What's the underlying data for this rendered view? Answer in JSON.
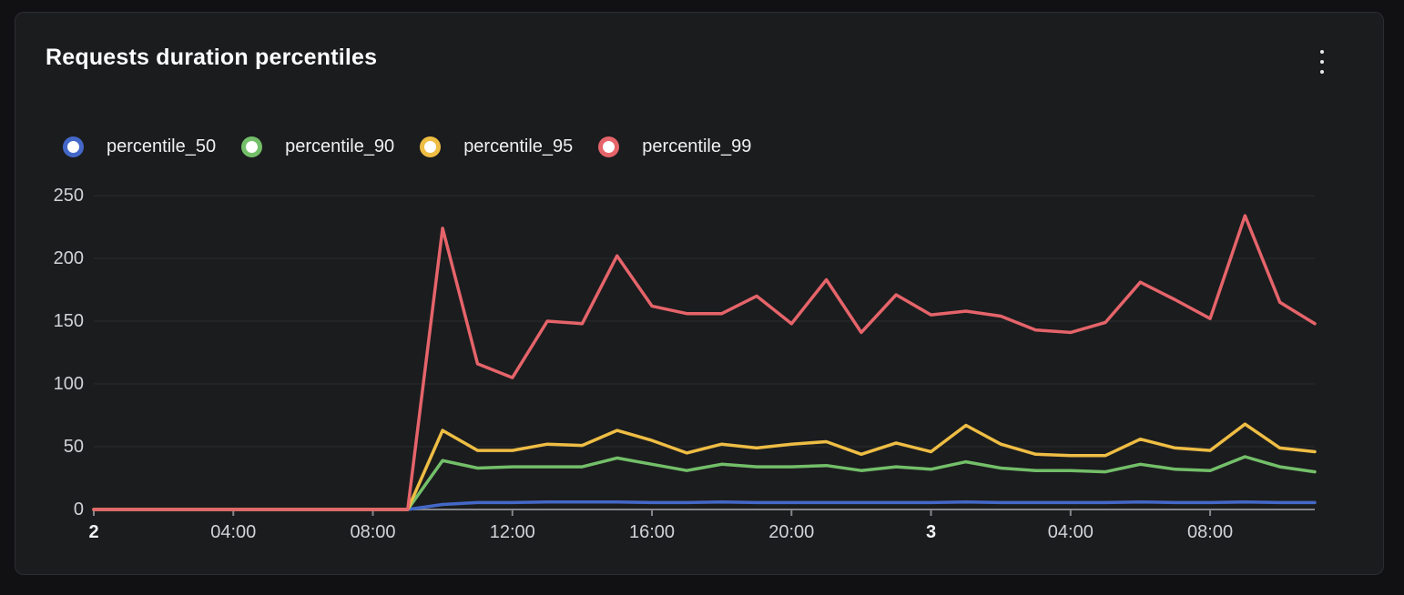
{
  "panel": {
    "title": "Requests duration percentiles",
    "menu_icon": "kebab-menu"
  },
  "chart_data": {
    "type": "line",
    "title": "Requests duration percentiles",
    "ylim": [
      0,
      250
    ],
    "y_ticks": [
      0,
      50,
      100,
      150,
      200,
      250
    ],
    "grid": "horizontal",
    "legend_position": "top",
    "x_hours": [
      0,
      1,
      2,
      3,
      4,
      5,
      6,
      7,
      8,
      9,
      10,
      11,
      12,
      13,
      14,
      15,
      16,
      17,
      18,
      19,
      20,
      21,
      22,
      23,
      24,
      25,
      26,
      27,
      28,
      29,
      30,
      31,
      32,
      33,
      34,
      35
    ],
    "x_ticks": [
      {
        "label": "2",
        "hour": 0,
        "bold": true
      },
      {
        "label": "04:00",
        "hour": 4,
        "bold": false
      },
      {
        "label": "08:00",
        "hour": 8,
        "bold": false
      },
      {
        "label": "12:00",
        "hour": 12,
        "bold": false
      },
      {
        "label": "16:00",
        "hour": 16,
        "bold": false
      },
      {
        "label": "20:00",
        "hour": 20,
        "bold": false
      },
      {
        "label": "3",
        "hour": 24,
        "bold": true
      },
      {
        "label": "04:00",
        "hour": 28,
        "bold": false
      },
      {
        "label": "08:00",
        "hour": 32,
        "bold": false
      }
    ],
    "series": [
      {
        "name": "percentile_50",
        "color": "#4468c8",
        "values": [
          0,
          0,
          0,
          0,
          0,
          0,
          0,
          0,
          0,
          0,
          4,
          5.5,
          5.5,
          6,
          6,
          6,
          5.5,
          5.5,
          6,
          5.5,
          5.5,
          5.5,
          5.5,
          5.5,
          5.5,
          6,
          5.5,
          5.5,
          5.5,
          5.5,
          6,
          5.5,
          5.5,
          6,
          5.5,
          5.5
        ]
      },
      {
        "name": "percentile_90",
        "color": "#73bf69",
        "values": [
          0,
          0,
          0,
          0,
          0,
          0,
          0,
          0,
          0,
          0,
          39,
          33,
          34,
          34,
          34,
          41,
          36,
          31,
          36,
          34,
          34,
          35,
          31,
          34,
          32,
          38,
          33,
          31,
          31,
          30,
          36,
          32,
          31,
          42,
          34,
          30
        ]
      },
      {
        "name": "percentile_95",
        "color": "#eebd44",
        "values": [
          0,
          0,
          0,
          0,
          0,
          0,
          0,
          0,
          0,
          0,
          63,
          47,
          47,
          52,
          51,
          63,
          55,
          45,
          52,
          49,
          52,
          54,
          44,
          53,
          46,
          67,
          52,
          44,
          43,
          43,
          56,
          49,
          47,
          68,
          49,
          46
        ]
      },
      {
        "name": "percentile_99",
        "color": "#e5646a",
        "values": [
          0,
          0,
          0,
          0,
          0,
          0,
          0,
          0,
          0,
          0,
          224,
          116,
          105,
          150,
          148,
          202,
          162,
          156,
          156,
          170,
          148,
          183,
          141,
          171,
          155,
          158,
          154,
          143,
          141,
          149,
          181,
          167,
          152,
          234,
          165,
          148
        ]
      }
    ],
    "axis_color": "#85858c",
    "grid_color": "#2a2b2e",
    "tick_label_color": "#d2d3d7"
  }
}
